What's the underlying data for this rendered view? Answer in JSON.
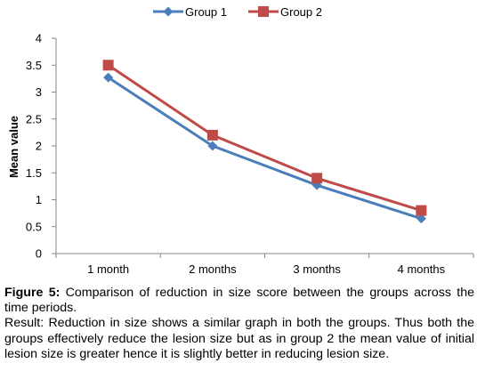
{
  "chart_data": {
    "type": "line",
    "categories": [
      "1 month",
      "2 months",
      "3 months",
      "4 months"
    ],
    "series": [
      {
        "name": "Group 1",
        "values": [
          3.27,
          2.0,
          1.27,
          0.65
        ],
        "color": "#4a7ebb",
        "marker": "diamond"
      },
      {
        "name": "Group 2",
        "values": [
          3.5,
          2.2,
          1.4,
          0.8
        ],
        "color": "#be4b48",
        "marker": "square"
      }
    ],
    "ylabel": "Mean value",
    "xlabel": "",
    "ylim": [
      0,
      4
    ],
    "yticks": [
      "0",
      "0.5",
      "1",
      "1.5",
      "2",
      "2.5",
      "3",
      "3.5",
      "4"
    ],
    "legend_position": "top",
    "grid": false
  },
  "caption": {
    "figure_label": "Figure 5:",
    "figure_text": " Comparison of reduction in size score between the groups across the time periods.",
    "result_text": "Result: Reduction in size shows a similar graph in both the groups. Thus both the groups effectively reduce the lesion size but as in group 2 the mean value of initial lesion size is greater hence it is slightly better in reducing lesion size."
  }
}
